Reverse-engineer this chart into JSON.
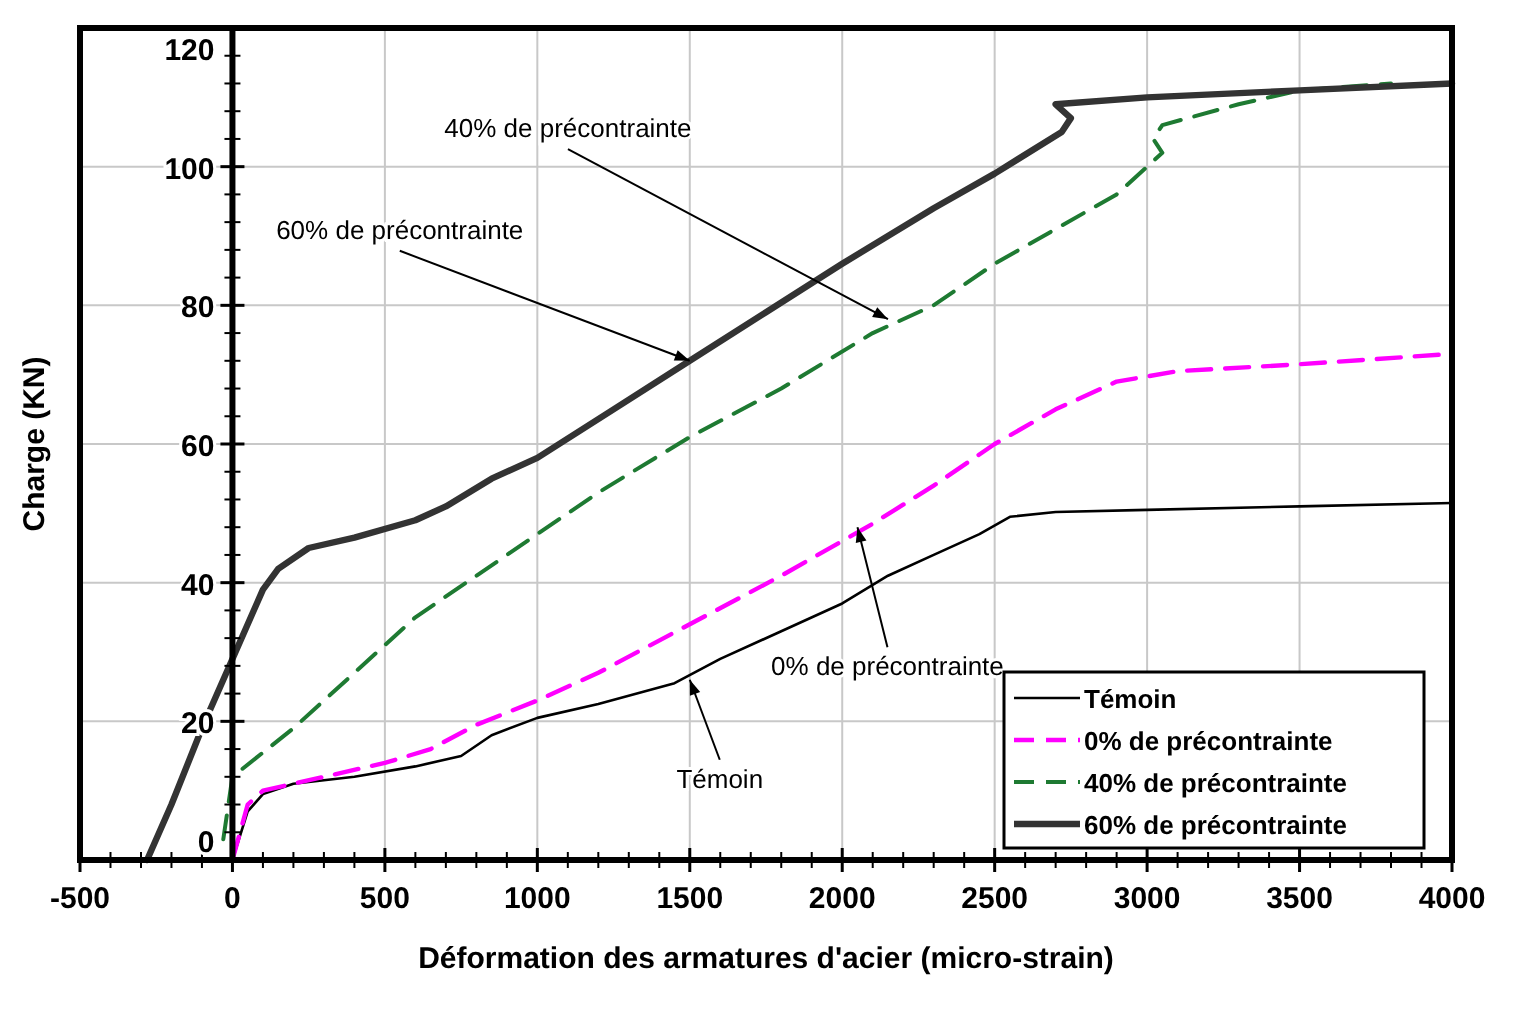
{
  "chart_data": {
    "type": "line",
    "xlabel": "Déformation des armatures d'acier (micro-strain)",
    "ylabel": "Charge (KN)",
    "xlim": [
      -500,
      4000
    ],
    "xticks": [
      -500,
      0,
      500,
      1000,
      1500,
      2000,
      2500,
      3000,
      3500,
      4000
    ],
    "ylim": [
      0,
      120
    ],
    "yticks": [
      0,
      20,
      40,
      60,
      80,
      100,
      120
    ],
    "grid": true,
    "legend": "bottom right",
    "marker": "none",
    "series": [
      {
        "name": "Témoin",
        "color": "#000000",
        "line_style": "solid",
        "x": [
          0,
          50,
          100,
          200,
          400,
          600,
          750,
          850,
          1000,
          1200,
          1450,
          1600,
          1800,
          2000,
          2150,
          2300,
          2450,
          2550,
          2700,
          3000,
          3500,
          4000
        ],
        "values": [
          0,
          7,
          9.5,
          11,
          12,
          13.5,
          15,
          18,
          20.5,
          22.5,
          25.5,
          29,
          33,
          37,
          41,
          44,
          47,
          49.5,
          50.2,
          50.5,
          51,
          51.5
        ]
      },
      {
        "name": "0% de précontrainte",
        "color": "#ff00ff",
        "line_style": "dashed",
        "x": [
          0,
          50,
          100,
          300,
          500,
          650,
          800,
          1000,
          1200,
          1500,
          1800,
          2100,
          2300,
          2500,
          2700,
          2900,
          3100,
          3500,
          4000
        ],
        "values": [
          0,
          8,
          10,
          12,
          14,
          16,
          19.5,
          23,
          27,
          34,
          41,
          48.5,
          54,
          60,
          65,
          69,
          70.5,
          71.5,
          73
        ]
      },
      {
        "name": "40% de précontrainte",
        "color": "#1e7a32",
        "line_style": "dashed",
        "x": [
          -30,
          0,
          200,
          400,
          600,
          800,
          1000,
          1200,
          1500,
          1800,
          2100,
          2300,
          2500,
          2700,
          2900,
          3000,
          3050,
          3020,
          3050,
          3300,
          3500,
          3800
        ],
        "values": [
          3,
          12,
          19,
          27,
          35,
          41,
          47,
          53,
          61,
          68,
          76,
          80,
          86,
          91,
          96,
          100,
          102,
          104,
          106,
          109,
          111,
          112
        ]
      },
      {
        "name": "60% de précontrainte",
        "color": "#333333",
        "line_style": "solid",
        "x": [
          -280,
          -200,
          -100,
          0,
          100,
          150,
          250,
          400,
          600,
          700,
          850,
          1000,
          1250,
          1500,
          1750,
          2000,
          2300,
          2500,
          2720,
          2750,
          2700,
          3000,
          3500,
          4000
        ],
        "values": [
          0,
          8,
          19,
          29,
          39,
          42,
          45,
          46.5,
          49,
          51,
          55,
          58,
          65,
          72,
          79,
          86,
          94,
          99,
          105,
          107,
          109,
          110,
          111,
          112
        ]
      }
    ],
    "annotations": [
      {
        "text": "60% de précontrainte",
        "x": 1500,
        "y": 72
      },
      {
        "text": "40% de précontrainte",
        "x": 2150,
        "y": 78
      },
      {
        "text": "0% de précontrainte",
        "x": 2050,
        "y": 48
      },
      {
        "text": "Témoin",
        "x": 1500,
        "y": 26
      }
    ]
  }
}
